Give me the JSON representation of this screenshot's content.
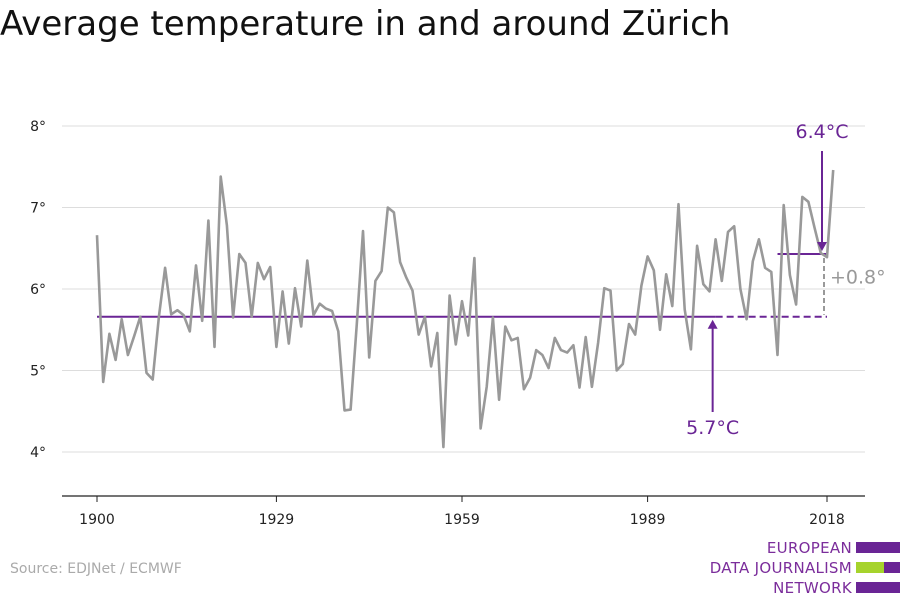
{
  "title": "Average temperature in and around Zürich",
  "source": "Source: EDJNet / ECMWF",
  "logo": {
    "lines": [
      "EUROPEAN",
      "DATA JOURNALISM",
      "NETWORK"
    ]
  },
  "colors": {
    "series": "#999999",
    "accent": "#6a2595",
    "logo_green": "#a6d32c",
    "grid": "#dddddd"
  },
  "chart_data": {
    "type": "line",
    "title": "Average temperature in and around Zürich",
    "xlabel": "",
    "ylabel": "",
    "xlim": [
      1894,
      2024
    ],
    "ylim": [
      3.5,
      8.2
    ],
    "x_ticks": [
      1900,
      1929,
      1959,
      1989,
      2018
    ],
    "y_ticks": [
      4,
      5,
      6,
      7,
      8
    ],
    "y_tick_labels": [
      "4°",
      "5°",
      "6°",
      "7°",
      "8°"
    ],
    "grid": "horizontal",
    "series": [
      {
        "x": [
          1900,
          1901,
          1902,
          1903,
          1904,
          1905,
          1906,
          1907,
          1908,
          1909,
          1910,
          1911,
          1912,
          1913,
          1914,
          1915,
          1916,
          1917,
          1918,
          1919,
          1920,
          1921,
          1922,
          1923,
          1924,
          1925,
          1926,
          1927,
          1928,
          1929,
          1930,
          1931,
          1932,
          1933,
          1934,
          1935,
          1936,
          1937,
          1938,
          1939,
          1940,
          1941,
          1942,
          1943,
          1944,
          1945,
          1946,
          1947,
          1948,
          1949,
          1950,
          1951,
          1952,
          1953,
          1954,
          1955,
          1956,
          1957,
          1958,
          1959,
          1960,
          1961,
          1962,
          1963,
          1964,
          1965,
          1966,
          1967,
          1968,
          1969,
          1970,
          1971,
          1972,
          1973,
          1974,
          1975,
          1976,
          1977,
          1978,
          1979,
          1980,
          1981,
          1982,
          1983,
          1984,
          1985,
          1986,
          1987,
          1988,
          1989,
          1990,
          1991,
          1992,
          1993,
          1994,
          1995,
          1996,
          1997,
          1998,
          1999,
          2000,
          2001,
          2002,
          2003,
          2004,
          2005,
          2006,
          2007,
          2008,
          2009,
          2010,
          2011,
          2012,
          2013,
          2014,
          2015,
          2016,
          2017,
          2018,
          2019
        ],
        "y": [
          6.66,
          4.86,
          5.45,
          5.13,
          5.63,
          5.19,
          5.42,
          5.66,
          4.97,
          4.89,
          5.66,
          6.26,
          5.69,
          5.74,
          5.68,
          5.48,
          6.29,
          5.61,
          6.84,
          5.29,
          7.38,
          6.78,
          5.65,
          6.43,
          6.32,
          5.66,
          6.32,
          6.12,
          6.27,
          5.29,
          5.97,
          5.33,
          6.01,
          5.54,
          6.35,
          5.68,
          5.82,
          5.76,
          5.73,
          5.48,
          4.51,
          4.52,
          5.57,
          6.71,
          5.16,
          6.1,
          6.22,
          7.0,
          6.94,
          6.33,
          6.14,
          5.98,
          5.44,
          5.66,
          5.05,
          5.46,
          4.06,
          5.92,
          5.32,
          5.85,
          5.43,
          6.38,
          4.29,
          4.8,
          5.65,
          4.64,
          5.54,
          5.37,
          5.4,
          4.77,
          4.91,
          5.25,
          5.19,
          5.03,
          5.4,
          5.25,
          5.22,
          5.31,
          4.79,
          5.41,
          4.8,
          5.34,
          6.01,
          5.98,
          5.0,
          5.08,
          5.57,
          5.44,
          6.04,
          6.4,
          6.23,
          5.5,
          6.18,
          5.79,
          7.04,
          5.75,
          5.26,
          6.53,
          6.06,
          5.97,
          6.61,
          6.1,
          6.7,
          6.77,
          6.0,
          5.63,
          6.34,
          6.61,
          6.26,
          6.21,
          5.19,
          7.03,
          6.17,
          5.81,
          7.13,
          7.07,
          6.75,
          6.44,
          6.39,
          7.46
        ]
      }
    ],
    "annotations": {
      "baseline": {
        "value": 5.66,
        "x_start": 1900,
        "x_solid_end": 2000,
        "x_end": 2018,
        "label": "5.7°C",
        "label_x": 2000
      },
      "recent": {
        "value": 6.43,
        "x_start": 2010,
        "x_end": 2018,
        "label": "6.4°C",
        "label_x": 2018
      },
      "difference": {
        "label": "+0.8°",
        "x": 2018
      }
    }
  }
}
